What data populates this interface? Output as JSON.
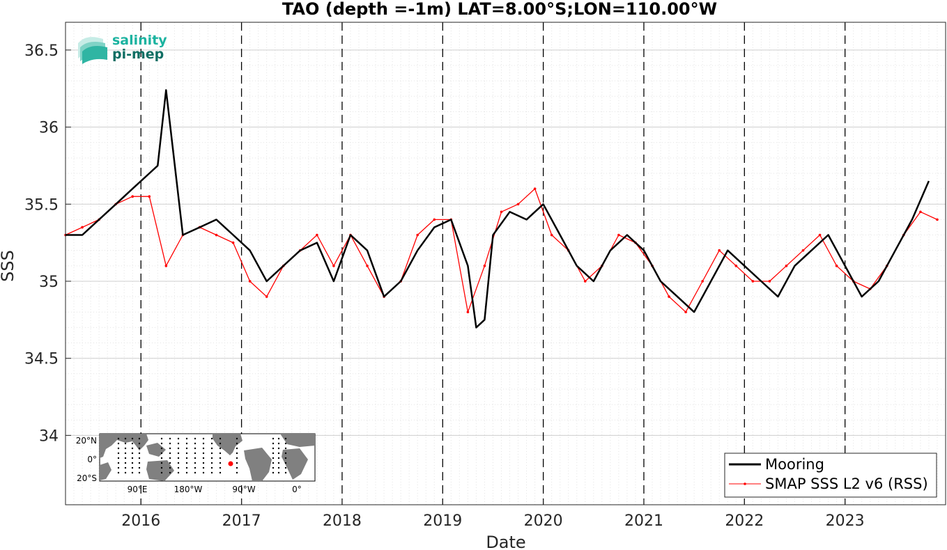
{
  "logo": {
    "line1": "salinity",
    "line2": "pi-mep",
    "color1": "#1bb3a0",
    "color2": "#0f6e63"
  },
  "inset_map": {
    "lat_labels": [
      "20°N",
      "0°",
      "20°S"
    ],
    "lon_labels": [
      "90°E",
      "180°W",
      "90°W",
      "0°"
    ],
    "marker_lat": -8.0,
    "marker_lon": -110.0,
    "land_color": "#808080",
    "ocean_color": "#ffffff",
    "marker_color": "#ff0000"
  },
  "chart_data": {
    "type": "line",
    "title": "TAO (depth =-1m) LAT=8.00°S;LON=110.00°W",
    "xlabel": "Date",
    "ylabel": "SSS",
    "xlim": [
      "2015-04-01",
      "2024-01-01"
    ],
    "ylim": [
      33.55,
      36.68
    ],
    "x_ticks": [
      "2016",
      "2017",
      "2018",
      "2019",
      "2020",
      "2021",
      "2022",
      "2023"
    ],
    "y_ticks": [
      34,
      34.5,
      35,
      35.5,
      36,
      36.5
    ],
    "year_boundaries_dashed": [
      "2016-01-01",
      "2017-01-01",
      "2018-01-01",
      "2019-01-01",
      "2020-01-01",
      "2021-01-01",
      "2022-01-01",
      "2023-01-01"
    ],
    "grid": true,
    "legend_position": "bottom-right",
    "series": [
      {
        "name": "Mooring",
        "color": "#000000",
        "style": "thick line",
        "x": [
          "2015-04",
          "2015-06",
          "2015-08",
          "2015-10",
          "2015-12",
          "2016-02",
          "2016-03",
          "2016-04",
          "2016-06",
          "2016-08",
          "2016-10",
          "2016-12",
          "2017-02",
          "2017-04",
          "2017-06",
          "2017-08",
          "2017-10",
          "2017-12",
          "2018-02",
          "2018-04",
          "2018-06",
          "2018-08",
          "2018-10",
          "2018-12",
          "2019-02",
          "2019-04",
          "2019-05",
          "2019-06",
          "2019-07",
          "2019-09",
          "2019-11",
          "2020-01",
          "2020-03",
          "2020-05",
          "2020-07",
          "2020-09",
          "2020-11",
          "2021-01",
          "2021-03",
          "2021-05",
          "2021-07",
          "2021-09",
          "2021-11",
          "2022-01",
          "2022-03",
          "2022-05",
          "2022-07",
          "2022-09",
          "2022-11",
          "2023-01",
          "2023-03",
          "2023-05",
          "2023-07",
          "2023-09",
          "2023-11"
        ],
        "y": [
          35.3,
          35.3,
          35.4,
          35.5,
          35.6,
          35.7,
          35.75,
          36.24,
          35.3,
          35.35,
          35.4,
          35.3,
          35.2,
          35.0,
          35.1,
          35.2,
          35.25,
          35.0,
          35.3,
          35.2,
          34.9,
          35.0,
          35.2,
          35.35,
          35.4,
          35.1,
          34.7,
          34.75,
          35.3,
          35.45,
          35.4,
          35.5,
          35.3,
          35.1,
          35.0,
          35.2,
          35.3,
          35.2,
          35.0,
          34.9,
          34.8,
          35.0,
          35.2,
          35.1,
          35.0,
          34.9,
          35.1,
          35.2,
          35.3,
          35.1,
          34.9,
          35.0,
          35.2,
          35.4,
          35.65
        ]
      },
      {
        "name": "SMAP SSS L2 v6 (RSS)",
        "color": "#ff0000",
        "style": "thin line with dot markers",
        "x": [
          "2015-04",
          "2015-06",
          "2015-08",
          "2015-10",
          "2015-12",
          "2016-02",
          "2016-04",
          "2016-06",
          "2016-08",
          "2016-10",
          "2016-12",
          "2017-02",
          "2017-04",
          "2017-06",
          "2017-08",
          "2017-10",
          "2017-12",
          "2018-02",
          "2018-04",
          "2018-06",
          "2018-08",
          "2018-10",
          "2018-12",
          "2019-02",
          "2019-04",
          "2019-06",
          "2019-08",
          "2019-10",
          "2019-12",
          "2020-02",
          "2020-04",
          "2020-06",
          "2020-08",
          "2020-10",
          "2020-12",
          "2021-02",
          "2021-04",
          "2021-06",
          "2021-08",
          "2021-10",
          "2021-12",
          "2022-02",
          "2022-04",
          "2022-06",
          "2022-08",
          "2022-10",
          "2022-12",
          "2023-02",
          "2023-04",
          "2023-06",
          "2023-08",
          "2023-10",
          "2023-12"
        ],
        "y": [
          35.3,
          35.35,
          35.4,
          35.5,
          35.55,
          35.55,
          35.1,
          35.3,
          35.35,
          35.3,
          35.25,
          35.0,
          34.9,
          35.1,
          35.2,
          35.3,
          35.1,
          35.3,
          35.1,
          34.9,
          35.0,
          35.3,
          35.4,
          35.4,
          34.8,
          35.1,
          35.45,
          35.5,
          35.6,
          35.3,
          35.2,
          35.0,
          35.1,
          35.3,
          35.25,
          35.1,
          34.9,
          34.8,
          35.0,
          35.2,
          35.1,
          35.0,
          35.0,
          35.1,
          35.2,
          35.3,
          35.1,
          35.0,
          34.95,
          35.1,
          35.3,
          35.45,
          35.4
        ]
      }
    ]
  }
}
